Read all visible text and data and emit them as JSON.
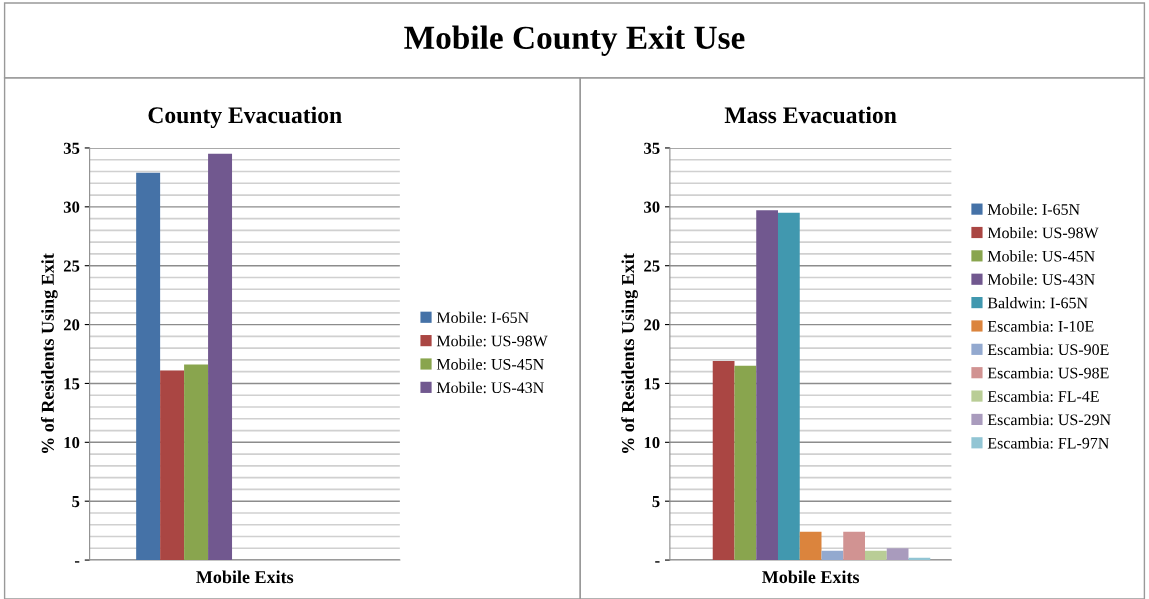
{
  "chart_data": [
    {
      "type": "bar",
      "title": "County Evacuation",
      "xlabel": "Mobile Exits",
      "ylabel": "% of Residents Using Exit",
      "annotations": [
        "Mobile County Exit Use"
      ],
      "categories": [
        null
      ],
      "ylim": [
        0,
        35
      ],
      "yticks": [
        {
          "value": 0,
          "label": "-"
        },
        5,
        10,
        15,
        20,
        25,
        30,
        35
      ],
      "grid": "y",
      "legend": "right",
      "series": [
        {
          "name": "Mobile: I-65N",
          "color": "#4572a7",
          "values": [
            32.9
          ]
        },
        {
          "name": "Mobile: US-98W",
          "color": "#aa4643",
          "values": [
            16.1
          ]
        },
        {
          "name": "Mobile: US-45N",
          "color": "#89a54e",
          "values": [
            16.6
          ]
        },
        {
          "name": "Mobile: US-43N",
          "color": "#71588f",
          "values": [
            34.5
          ]
        }
      ]
    },
    {
      "type": "bar",
      "title": "Mass Evacuation",
      "xlabel": "Mobile Exits",
      "ylabel": "% of Residents Using Exit",
      "categories": [
        null
      ],
      "ylim": [
        0,
        35
      ],
      "yticks": [
        {
          "value": 0,
          "label": "-"
        },
        5,
        10,
        15,
        20,
        25,
        30,
        35
      ],
      "grid": "y",
      "legend": "right",
      "series": [
        {
          "name": "Mobile: I-65N",
          "color": "#4572a7",
          "values": [
            0
          ]
        },
        {
          "name": "Mobile: US-98W",
          "color": "#aa4643",
          "values": [
            16.9
          ]
        },
        {
          "name": "Mobile: US-45N",
          "color": "#89a54e",
          "values": [
            16.5
          ]
        },
        {
          "name": "Mobile: US-43N",
          "color": "#71588f",
          "values": [
            29.7
          ]
        },
        {
          "name": "Baldwin: I-65N",
          "color": "#4198af",
          "values": [
            29.5
          ]
        },
        {
          "name": "Escambia: I-10E",
          "color": "#db843d",
          "values": [
            2.4
          ]
        },
        {
          "name": "Escambia: US-90E",
          "color": "#93a9cf",
          "values": [
            0.8
          ]
        },
        {
          "name": "Escambia: US-98E",
          "color": "#d19392",
          "values": [
            2.4
          ]
        },
        {
          "name": "Escambia: FL-4E",
          "color": "#b9cd96",
          "values": [
            0.8
          ]
        },
        {
          "name": "Escambia: US-29N",
          "color": "#a99bbd",
          "values": [
            1.0
          ]
        },
        {
          "name": "Escambia: FL-97N",
          "color": "#92c5d4",
          "values": [
            0.2
          ]
        }
      ]
    }
  ]
}
